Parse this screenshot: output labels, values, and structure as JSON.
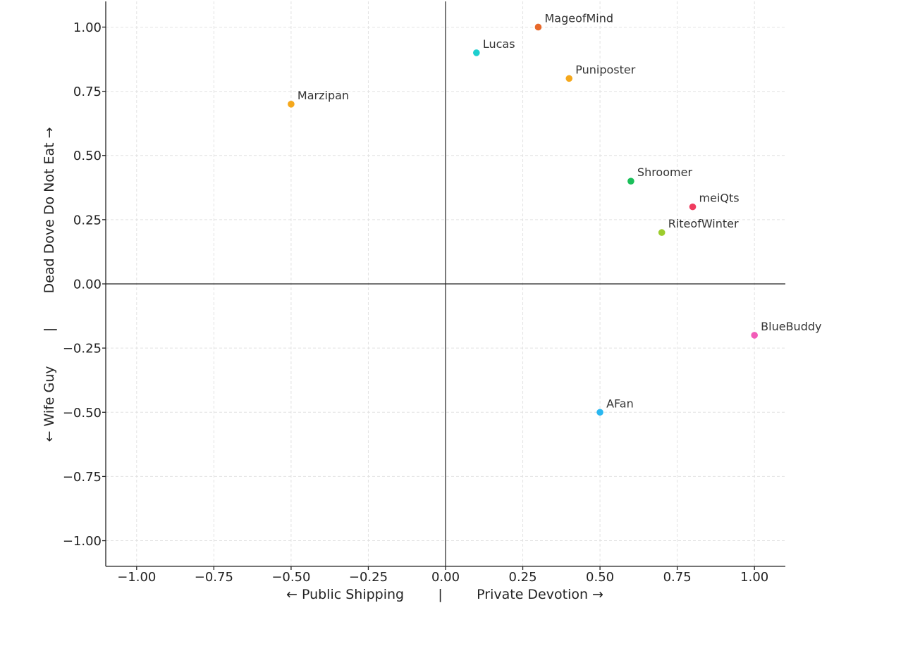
{
  "chart_data": {
    "type": "scatter",
    "xlabel": "← Public Shipping        |        Private Devotion →",
    "ylabel": "← Wife Guy        |        Dead Dove Do Not Eat →",
    "xlim": [
      -1.1,
      1.1
    ],
    "ylim": [
      -1.1,
      1.1
    ],
    "x_ticks": [
      -1.0,
      -0.75,
      -0.5,
      -0.25,
      0.0,
      0.25,
      0.5,
      0.75,
      1.0
    ],
    "y_ticks": [
      -1.0,
      -0.75,
      -0.5,
      -0.25,
      0.0,
      0.25,
      0.5,
      0.75,
      1.0
    ],
    "x_tick_labels": [
      "−1.00",
      "−0.75",
      "−0.50",
      "−0.25",
      "0.00",
      "0.25",
      "0.50",
      "0.75",
      "1.00"
    ],
    "y_tick_labels": [
      "−1.00",
      "−0.75",
      "−0.50",
      "−0.25",
      "0.00",
      "0.25",
      "0.50",
      "0.75",
      "1.00"
    ],
    "grid": true,
    "zero_lines": true,
    "points": [
      {
        "label": "MageofMind",
        "x": 0.3,
        "y": 1.0,
        "color": "#e8692b"
      },
      {
        "label": "Lucas",
        "x": 0.1,
        "y": 0.9,
        "color": "#1dcfcf"
      },
      {
        "label": "Puniposter",
        "x": 0.4,
        "y": 0.8,
        "color": "#f5a81c"
      },
      {
        "label": "Marzipan",
        "x": -0.5,
        "y": 0.7,
        "color": "#f5a81c"
      },
      {
        "label": "Shroomer",
        "x": 0.6,
        "y": 0.4,
        "color": "#1bbf5a"
      },
      {
        "label": "meiQts",
        "x": 0.8,
        "y": 0.3,
        "color": "#ef3b5e"
      },
      {
        "label": "RiteofWinter",
        "x": 0.7,
        "y": 0.2,
        "color": "#9ccc2c"
      },
      {
        "label": "BlueBuddy",
        "x": 1.0,
        "y": -0.2,
        "color": "#f25cb8"
      },
      {
        "label": "AFan",
        "x": 0.5,
        "y": -0.5,
        "color": "#2ab7f0"
      }
    ]
  }
}
